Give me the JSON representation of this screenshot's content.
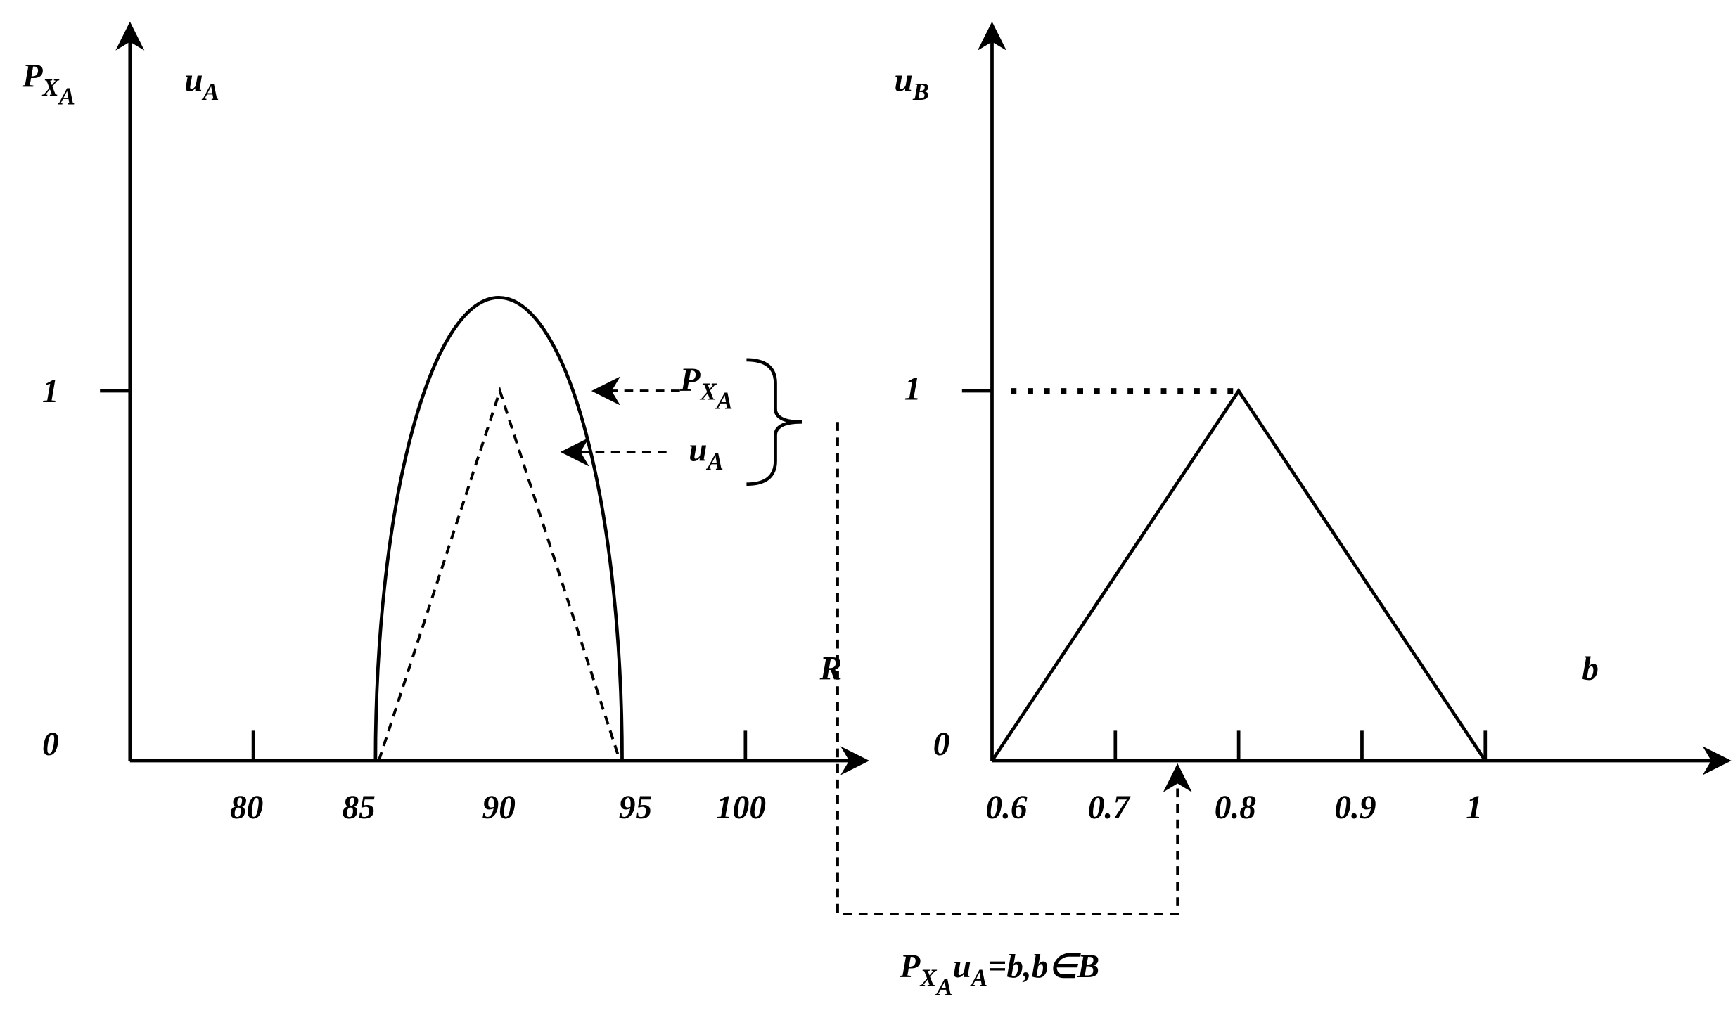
{
  "left_panel": {
    "y_axis_labels": [
      {
        "base": "P",
        "sub": "X",
        "sub2": "A"
      },
      {
        "base": "u",
        "sub": "A"
      }
    ],
    "y_ticks": [
      "1",
      "0"
    ],
    "x_ticks": [
      "80",
      "85",
      "90",
      "95",
      "100"
    ],
    "x_axis_label": "R",
    "legend": [
      {
        "base": "P",
        "sub": "X",
        "sub2": "A"
      },
      {
        "base": "u",
        "sub": "A"
      }
    ]
  },
  "right_panel": {
    "y_axis_label": {
      "base": "u",
      "sub": "B"
    },
    "y_ticks": [
      "1",
      "0"
    ],
    "x_ticks": [
      "0.6",
      "0.7",
      "0.8",
      "0.9",
      "1"
    ],
    "x_axis_label": "b"
  },
  "formula": {
    "p": "P",
    "p_sub": "X",
    "p_sub2": "A",
    "u": "u",
    "u_sub": "A",
    "rest": "=b,b∈B"
  }
}
